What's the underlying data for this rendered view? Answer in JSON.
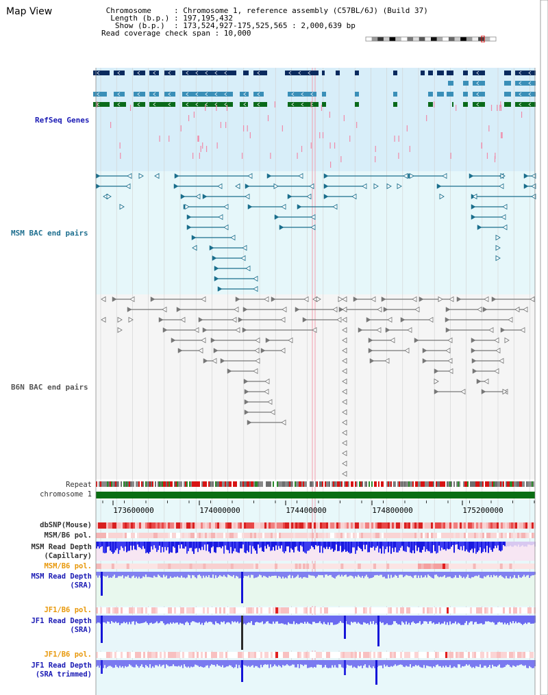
{
  "header": {
    "title": "Map View",
    "info_lines": [
      " Chromosome     : Chromosome 1, reference assembly (C57BL/6J) (Build 37)",
      "  Length (b.p.) : 197,195,432",
      "   Show (b.p.)  : 173,524,927-175,525,565 : 2,000,639 bp",
      "Read coverage check span : 10,000"
    ]
  },
  "tracks": {
    "refseq": "RefSeq Genes",
    "msm_bac": "MSM BAC end pairs",
    "b6n_bac": "B6N BAC end pairs",
    "repeat": "Repeat",
    "chromosome": "chromosome 1",
    "dbsnp": "dbSNP(Mouse)",
    "msm_b6_pol_1": "MSM/B6 pol.",
    "msm_read_depth_cap_1": "MSM Read Depth",
    "msm_read_depth_cap_2": "(Capillary)",
    "msm_b6_pol_2": "MSM/B6 pol.",
    "msm_read_depth_sra_1": "MSM Read Depth",
    "msm_read_depth_sra_2": "(SRA)",
    "jf1_b6_pol_1": "JF1/B6 pol.",
    "jf1_read_depth_sra_1": "JF1 Read Depth",
    "jf1_read_depth_sra_2": "(SRA)",
    "jf1_b6_pol_2": "JF1/B6 pol.",
    "jf1_read_depth_trim_1": "JF1 Read Depth",
    "jf1_read_depth_trim_2": "(SRA trimmed)"
  },
  "ruler": {
    "ticks": [
      "173600000",
      "174000000",
      "174400000",
      "174800000",
      "175200000"
    ]
  },
  "colors": {
    "refseq_bg": "#d8eef9",
    "msm_bg": "#e6f7fa",
    "b6n_bg": "#f5f5f5",
    "gene_dark": "#0a2a5e",
    "gene_mid": "#3a8fb8",
    "gene_green": "#0a6a1a",
    "chromosome": "#0a6e12",
    "depth_blue": "#2a2ae0",
    "depth_light": "#7a7af0",
    "snp_red": "#e84848"
  }
}
